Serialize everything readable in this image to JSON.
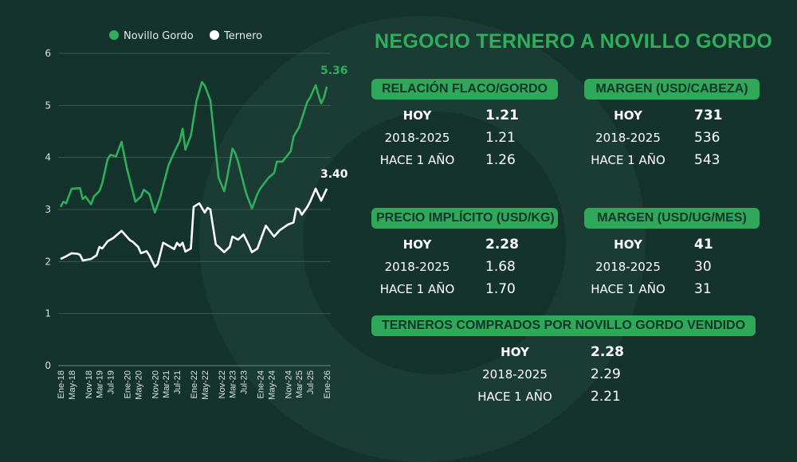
{
  "title": "NEGOCIO TERNERO A NOVILLO GORDO",
  "chart_data": {
    "type": "line",
    "ylim": [
      0,
      6
    ],
    "yticks": [
      "0",
      "1",
      "2",
      "3",
      "4",
      "5",
      "6"
    ],
    "grid": true,
    "legend_position": "top",
    "x_months": 97,
    "xticks": [
      {
        "m": 0,
        "label": "Ene-18"
      },
      {
        "m": 4,
        "label": "May-18"
      },
      {
        "m": 10,
        "label": "Nov-18"
      },
      {
        "m": 14,
        "label": "Mar-19"
      },
      {
        "m": 18,
        "label": "Jul-19"
      },
      {
        "m": 24,
        "label": "Ene-20"
      },
      {
        "m": 28,
        "label": "May-20"
      },
      {
        "m": 34,
        "label": "Nov-20"
      },
      {
        "m": 38,
        "label": "Mar-21"
      },
      {
        "m": 42,
        "label": "Jul-21"
      },
      {
        "m": 48,
        "label": "Ene-22"
      },
      {
        "m": 52,
        "label": "May-22"
      },
      {
        "m": 58,
        "label": "Nov-22"
      },
      {
        "m": 62,
        "label": "Mar-23"
      },
      {
        "m": 66,
        "label": "Jul-23"
      },
      {
        "m": 72,
        "label": "Ene-24"
      },
      {
        "m": 76,
        "label": "May-24"
      },
      {
        "m": 82,
        "label": "Nov-24"
      },
      {
        "m": 86,
        "label": "Mar-25"
      },
      {
        "m": 90,
        "label": "Jul-25"
      },
      {
        "m": 96,
        "label": "Ene-26"
      }
    ],
    "series": [
      {
        "name": "Novillo Gordo",
        "color": "#2fae5b",
        "last_label": "5.36",
        "points": [
          [
            0,
            3.05
          ],
          [
            1,
            3.15
          ],
          [
            2,
            3.12
          ],
          [
            4,
            3.4
          ],
          [
            7,
            3.41
          ],
          [
            8,
            3.2
          ],
          [
            9,
            3.25
          ],
          [
            11,
            3.1
          ],
          [
            12,
            3.25
          ],
          [
            14,
            3.35
          ],
          [
            15,
            3.5
          ],
          [
            17,
            3.97
          ],
          [
            18,
            4.05
          ],
          [
            20,
            4.02
          ],
          [
            22,
            4.3
          ],
          [
            24,
            3.77
          ],
          [
            27,
            3.15
          ],
          [
            29,
            3.25
          ],
          [
            30,
            3.38
          ],
          [
            32,
            3.3
          ],
          [
            34,
            2.94
          ],
          [
            36,
            3.25
          ],
          [
            37,
            3.46
          ],
          [
            39,
            3.86
          ],
          [
            41,
            4.1
          ],
          [
            43,
            4.32
          ],
          [
            44,
            4.55
          ],
          [
            45,
            4.15
          ],
          [
            47,
            4.42
          ],
          [
            49,
            5.08
          ],
          [
            51,
            5.45
          ],
          [
            52,
            5.38
          ],
          [
            54,
            5.1
          ],
          [
            55,
            4.6
          ],
          [
            57,
            3.61
          ],
          [
            59,
            3.35
          ],
          [
            60,
            3.6
          ],
          [
            62,
            4.17
          ],
          [
            63,
            4.08
          ],
          [
            64,
            3.92
          ],
          [
            66,
            3.5
          ],
          [
            67,
            3.3
          ],
          [
            69,
            3.02
          ],
          [
            71,
            3.3
          ],
          [
            72,
            3.4
          ],
          [
            75,
            3.61
          ],
          [
            77,
            3.7
          ],
          [
            78,
            3.92
          ],
          [
            80,
            3.92
          ],
          [
            83,
            4.12
          ],
          [
            84,
            4.4
          ],
          [
            86,
            4.58
          ],
          [
            89,
            5.07
          ],
          [
            90,
            5.15
          ],
          [
            92,
            5.39
          ],
          [
            93,
            5.2
          ],
          [
            94,
            5.04
          ],
          [
            95,
            5.15
          ],
          [
            96,
            5.36
          ]
        ]
      },
      {
        "name": "Ternero",
        "color": "#ffffff",
        "last_label": "3.40",
        "points": [
          [
            0,
            2.05
          ],
          [
            2,
            2.1
          ],
          [
            4,
            2.16
          ],
          [
            6,
            2.15
          ],
          [
            7,
            2.13
          ],
          [
            8,
            2.02
          ],
          [
            11,
            2.05
          ],
          [
            13,
            2.12
          ],
          [
            14,
            2.28
          ],
          [
            15,
            2.25
          ],
          [
            17,
            2.39
          ],
          [
            19,
            2.45
          ],
          [
            22,
            2.59
          ],
          [
            25,
            2.41
          ],
          [
            26,
            2.38
          ],
          [
            28,
            2.28
          ],
          [
            29,
            2.16
          ],
          [
            31,
            2.2
          ],
          [
            32,
            2.12
          ],
          [
            34,
            1.9
          ],
          [
            35,
            1.95
          ],
          [
            37,
            2.36
          ],
          [
            39,
            2.3
          ],
          [
            41,
            2.24
          ],
          [
            42,
            2.36
          ],
          [
            43,
            2.3
          ],
          [
            44,
            2.36
          ],
          [
            45,
            2.19
          ],
          [
            47,
            2.25
          ],
          [
            48,
            3.05
          ],
          [
            50,
            3.12
          ],
          [
            52,
            2.94
          ],
          [
            53,
            3.03
          ],
          [
            54,
            3.0
          ],
          [
            56,
            2.33
          ],
          [
            57,
            2.28
          ],
          [
            59,
            2.18
          ],
          [
            61,
            2.28
          ],
          [
            62,
            2.48
          ],
          [
            64,
            2.42
          ],
          [
            66,
            2.52
          ],
          [
            68,
            2.3
          ],
          [
            69,
            2.18
          ],
          [
            71,
            2.25
          ],
          [
            74,
            2.69
          ],
          [
            77,
            2.48
          ],
          [
            79,
            2.6
          ],
          [
            82,
            2.71
          ],
          [
            84,
            2.75
          ],
          [
            85,
            3.02
          ],
          [
            86,
            3.0
          ],
          [
            87,
            2.9
          ],
          [
            89,
            3.05
          ],
          [
            90,
            3.15
          ],
          [
            92,
            3.4
          ],
          [
            94,
            3.17
          ],
          [
            96,
            3.4
          ]
        ]
      }
    ]
  },
  "tables": [
    {
      "title": "RELACIÓN FLACO/GORDO",
      "rows": [
        {
          "label": "HOY",
          "value": "1.21"
        },
        {
          "label": "2018-2025",
          "value": "1.21"
        },
        {
          "label": "HACE 1 AÑO",
          "value": "1.26"
        }
      ]
    },
    {
      "title": "MARGEN (USD/CABEZA)",
      "rows": [
        {
          "label": "HOY",
          "value": "731"
        },
        {
          "label": "2018-2025",
          "value": "536"
        },
        {
          "label": "HACE 1 AÑO",
          "value": "543"
        }
      ]
    },
    {
      "title": "PRECIO IMPLÍCITO (USD/KG)",
      "rows": [
        {
          "label": "HOY",
          "value": "2.28"
        },
        {
          "label": "2018-2025",
          "value": "1.68"
        },
        {
          "label": "HACE 1 AÑO",
          "value": "1.70"
        }
      ]
    },
    {
      "title": "MARGEN (USD/UG/MES)",
      "rows": [
        {
          "label": "HOY",
          "value": "41"
        },
        {
          "label": "2018-2025",
          "value": "30"
        },
        {
          "label": "HACE 1 AÑO",
          "value": "31"
        }
      ]
    },
    {
      "title": "TERNEROS COMPRADOS POR NOVILLO GORDO VENDIDO",
      "rows": [
        {
          "label": "HOY",
          "value": "2.28"
        },
        {
          "label": "2018-2025",
          "value": "2.29"
        },
        {
          "label": "HACE 1 AÑO",
          "value": "2.21"
        }
      ]
    }
  ]
}
